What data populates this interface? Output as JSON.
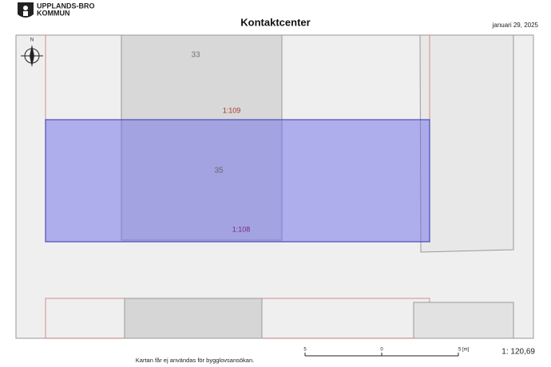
{
  "header": {
    "org_line1": "UPPLANDS-BRO",
    "org_line2": "KOMMUN",
    "title": "Kontaktcenter",
    "date": "januari 29, 2025"
  },
  "map": {
    "north": "N",
    "labels": [
      "33",
      "35"
    ],
    "parcels": [
      "1:109",
      "1:108"
    ]
  },
  "scalebar": {
    "labels": [
      "5",
      "0",
      "5 [m]"
    ],
    "ratio": "1: 120,69"
  },
  "footer": {
    "note": "Kartan får ej användas för bygglovsansökan."
  }
}
